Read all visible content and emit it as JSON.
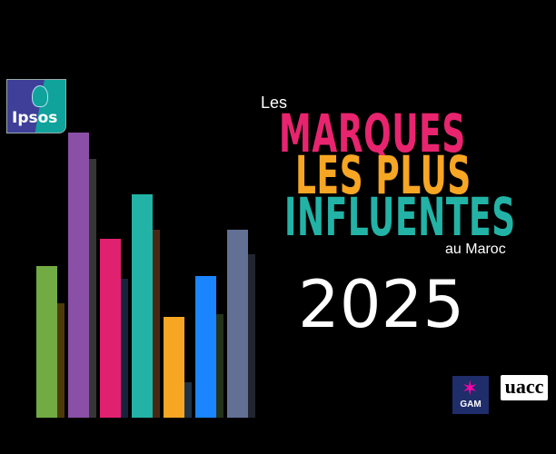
{
  "title": {
    "les": "Les",
    "line1": "MARQUES",
    "line2": "LES PLUS",
    "line3": "INFLUENTES",
    "suffix": "au Maroc",
    "year": "2025"
  },
  "logos": {
    "ipsos": "Ipsos",
    "gam": "GAM",
    "uacc": "uacc"
  },
  "colors": {
    "line1": "#e8246f",
    "line2": "#f6a623",
    "line3": "#22b3a6",
    "bars": [
      "#72aa43",
      "#8a4fa6",
      "#e0216f",
      "#22b3a6",
      "#f6a623",
      "#1a85ff",
      "#627095"
    ],
    "bar_shadows": [
      "#4e3a06",
      "#363636",
      "#17233d",
      "#4a2714",
      "#1f3246",
      "#25321a",
      "#20252e"
    ]
  }
}
